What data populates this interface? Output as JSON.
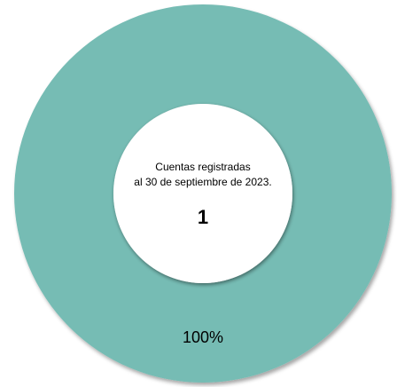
{
  "chart_data": {
    "type": "pie",
    "variant": "donut",
    "slices": [
      {
        "label": "Cuentas registradas",
        "value": 1,
        "percent_label": "100%",
        "color": "#76bcb4"
      }
    ],
    "center_text": {
      "line1": "Cuentas registradas",
      "line2": "al 30 de septiembre de 2023.",
      "total": "1"
    },
    "legend": "none"
  }
}
